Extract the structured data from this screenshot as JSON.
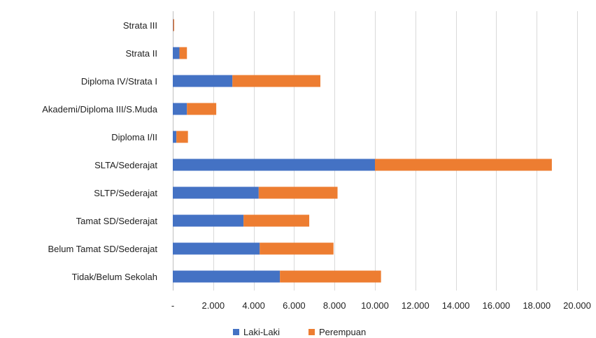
{
  "chart_data": {
    "type": "bar",
    "orientation": "horizontal",
    "stacked": true,
    "categories": [
      "Strata III",
      "Strata II",
      "Diploma IV/Strata I",
      "Akademi/Diploma III/S.Muda",
      "Diploma I/II",
      "SLTA/Sederajat",
      "SLTP/Sederajat",
      "Tamat SD/Sederajat",
      "Belum Tamat SD/Sederajat",
      "Tidak/Belum Sekolah"
    ],
    "series": [
      {
        "name": "Laki-Laki",
        "color": "#4472C4",
        "values": [
          20,
          330,
          2950,
          700,
          180,
          10000,
          4250,
          3500,
          4300,
          5300
        ]
      },
      {
        "name": "Perempuan",
        "color": "#ED7D31",
        "values": [
          50,
          370,
          4350,
          1450,
          570,
          8750,
          3900,
          3250,
          3650,
          5000
        ]
      }
    ],
    "xlim": [
      0,
      20000
    ],
    "xticks": [
      {
        "value": 0,
        "label": "-"
      },
      {
        "value": 2000,
        "label": "2.000"
      },
      {
        "value": 4000,
        "label": "4.000"
      },
      {
        "value": 6000,
        "label": "6.000"
      },
      {
        "value": 8000,
        "label": "8.000"
      },
      {
        "value": 10000,
        "label": "10.000"
      },
      {
        "value": 12000,
        "label": "12.000"
      },
      {
        "value": 14000,
        "label": "14.000"
      },
      {
        "value": 16000,
        "label": "16.000"
      },
      {
        "value": 18000,
        "label": "18.000"
      },
      {
        "value": 20000,
        "label": "20.000"
      }
    ],
    "title": "",
    "xlabel": "",
    "ylabel": "",
    "grid": "vertical",
    "legend": "bottom"
  }
}
